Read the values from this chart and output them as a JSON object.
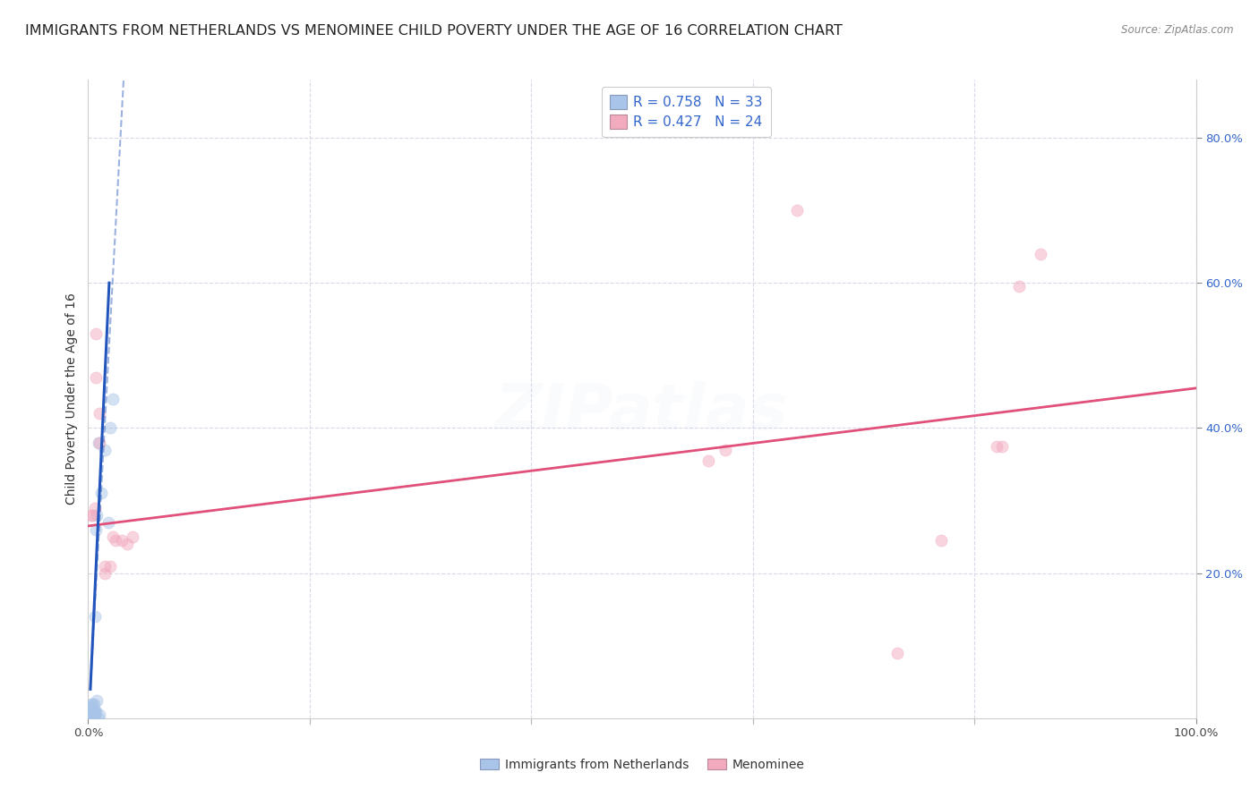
{
  "title": "IMMIGRANTS FROM NETHERLANDS VS MENOMINEE CHILD POVERTY UNDER THE AGE OF 16 CORRELATION CHART",
  "source": "Source: ZipAtlas.com",
  "ylabel": "Child Poverty Under the Age of 16",
  "xlim": [
    0,
    1.0
  ],
  "ylim": [
    0,
    0.88
  ],
  "xticks": [
    0.0,
    0.2,
    0.4,
    0.6,
    0.8,
    1.0
  ],
  "xtick_labels": [
    "0.0%",
    "",
    "",
    "",
    "",
    "100.0%"
  ],
  "ytick_labels": [
    "20.0%",
    "40.0%",
    "60.0%",
    "80.0%"
  ],
  "ytick_values": [
    0.2,
    0.4,
    0.6,
    0.8
  ],
  "legend_label1": "Immigrants from Netherlands",
  "legend_label2": "Menominee",
  "r1": "0.758",
  "n1": "33",
  "r2": "0.427",
  "n2": "24",
  "blue_color": "#a8c4e8",
  "pink_color": "#f2aabf",
  "blue_line_color": "#2255bb",
  "pink_line_color": "#e0507a",
  "blue_dots": [
    [
      0.001,
      0.005
    ],
    [
      0.001,
      0.01
    ],
    [
      0.002,
      0.0
    ],
    [
      0.002,
      0.005
    ],
    [
      0.002,
      0.015
    ],
    [
      0.003,
      0.0
    ],
    [
      0.003,
      0.005
    ],
    [
      0.003,
      0.01
    ],
    [
      0.003,
      0.015
    ],
    [
      0.003,
      0.02
    ],
    [
      0.004,
      0.0
    ],
    [
      0.004,
      0.005
    ],
    [
      0.004,
      0.01
    ],
    [
      0.004,
      0.02
    ],
    [
      0.005,
      0.0
    ],
    [
      0.005,
      0.005
    ],
    [
      0.005,
      0.01
    ],
    [
      0.005,
      0.02
    ],
    [
      0.006,
      0.005
    ],
    [
      0.006,
      0.01
    ],
    [
      0.006,
      0.14
    ],
    [
      0.007,
      0.01
    ],
    [
      0.007,
      0.26
    ],
    [
      0.008,
      0.025
    ],
    [
      0.008,
      0.28
    ],
    [
      0.009,
      0.0
    ],
    [
      0.009,
      0.38
    ],
    [
      0.01,
      0.005
    ],
    [
      0.012,
      0.31
    ],
    [
      0.015,
      0.37
    ],
    [
      0.018,
      0.27
    ],
    [
      0.02,
      0.4
    ],
    [
      0.022,
      0.44
    ]
  ],
  "pink_dots": [
    [
      0.003,
      0.28
    ],
    [
      0.004,
      0.28
    ],
    [
      0.006,
      0.29
    ],
    [
      0.007,
      0.47
    ],
    [
      0.007,
      0.53
    ],
    [
      0.01,
      0.38
    ],
    [
      0.01,
      0.42
    ],
    [
      0.015,
      0.2
    ],
    [
      0.015,
      0.21
    ],
    [
      0.02,
      0.21
    ],
    [
      0.022,
      0.25
    ],
    [
      0.025,
      0.245
    ],
    [
      0.03,
      0.245
    ],
    [
      0.035,
      0.24
    ],
    [
      0.04,
      0.25
    ],
    [
      0.56,
      0.355
    ],
    [
      0.575,
      0.37
    ],
    [
      0.64,
      0.7
    ],
    [
      0.73,
      0.09
    ],
    [
      0.77,
      0.245
    ],
    [
      0.82,
      0.375
    ],
    [
      0.825,
      0.375
    ],
    [
      0.84,
      0.595
    ],
    [
      0.86,
      0.64
    ]
  ],
  "blue_regline_solid": {
    "x_start": 0.002,
    "y_start": 0.04,
    "x_end": 0.019,
    "y_end": 0.6
  },
  "blue_regline_dash": {
    "x_start": 0.002,
    "y_start": 0.04,
    "x_end": 0.032,
    "y_end": 0.88
  },
  "pink_regline": {
    "x_start": 0.0,
    "y_start": 0.265,
    "x_end": 1.0,
    "y_end": 0.455
  },
  "background_color": "#ffffff",
  "grid_color": "#d8d8e8",
  "title_fontsize": 11.5,
  "axis_label_fontsize": 10,
  "tick_fontsize": 9.5,
  "marker_size": 90,
  "marker_alpha": 0.5,
  "watermark_text": "ZIPatlas",
  "watermark_alpha": 0.07
}
